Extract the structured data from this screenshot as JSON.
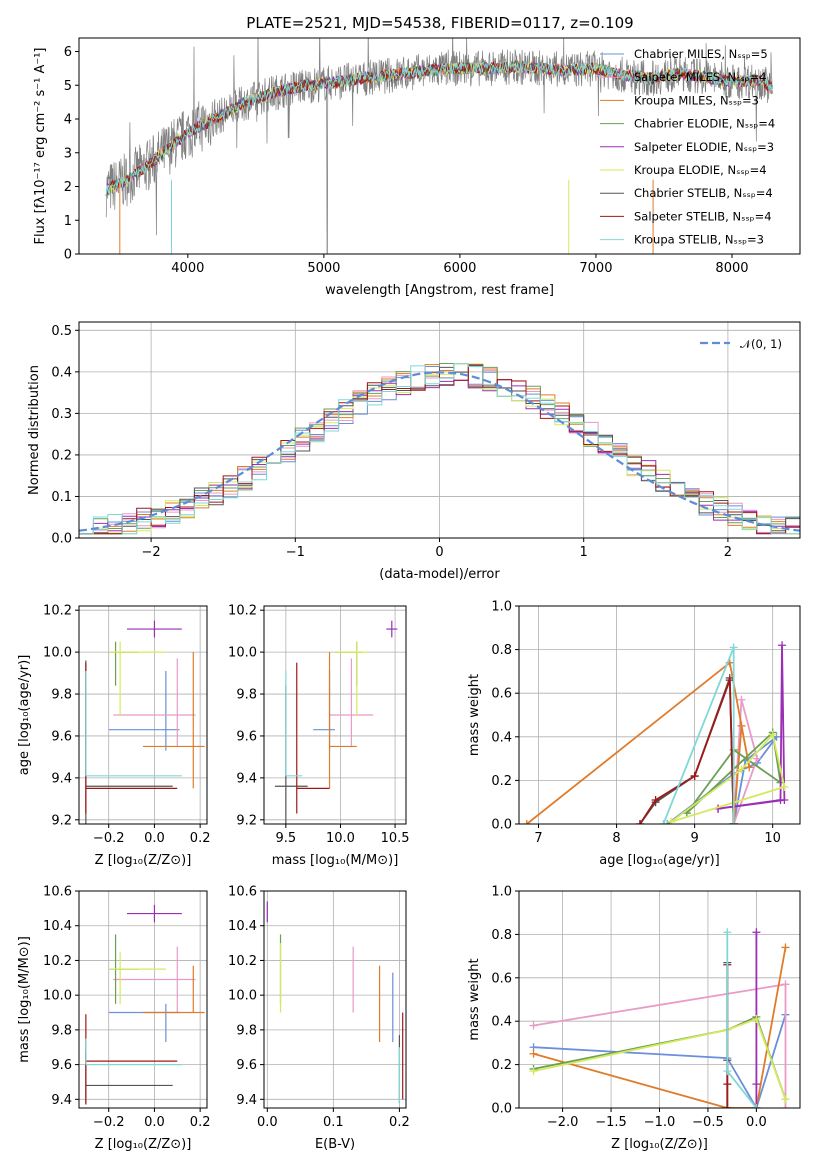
{
  "figure": {
    "title": "PLATE=2521, MJD=54538, FIBERID=0117, z=0.109",
    "colors": {
      "chabrier_miles": "#6b8fd8",
      "salpeter_miles": "#e99ac6",
      "kroupa_miles": "#e07b2a",
      "chabrier_elodie": "#6a9f55",
      "salpeter_elodie": "#9a2fb5",
      "kroupa_elodie": "#d4ea5c",
      "chabrier_stelib": "#555555",
      "salpeter_stelib": "#a01818",
      "kroupa_stelib": "#7fd8d8",
      "observed": "#808080",
      "normal": "#5b8dd9"
    }
  },
  "chart_data": [
    {
      "id": "spectrum",
      "type": "line",
      "xlabel": "wavelength [Angstrom, rest frame]",
      "ylabel": "Flux [fλ10⁻¹⁷ erg cm⁻² s⁻¹ A⁻¹]",
      "xlim": [
        3200,
        8500
      ],
      "ylim": [
        0,
        6.4
      ],
      "xticks": [
        4000,
        5000,
        6000,
        7000,
        8000
      ],
      "yticks": [
        0,
        1,
        2,
        3,
        4,
        5,
        6
      ],
      "legend_position": "upper-right",
      "legend": [
        "Chabrier MILES, Nₛₛₚ=5",
        "Salpeter MILES, Nₛₛₚ=4",
        "Kroupa MILES, Nₛₛₚ=3",
        "Chabrier ELODIE, Nₛₛₚ=4",
        "Salpeter ELODIE, Nₛₛₚ=3",
        "Kroupa ELODIE, Nₛₛₚ=4",
        "Chabrier STELIB, Nₛₛₚ=4",
        "Salpeter STELIB, Nₛₛₚ=4",
        "Kroupa STELIB, Nₛₛₚ=3"
      ],
      "continuum": {
        "x": [
          3400,
          3550,
          3700,
          3850,
          4000,
          4200,
          4400,
          4600,
          4800,
          5000,
          5200,
          5400,
          5600,
          5800,
          6000,
          6200,
          6400,
          6600,
          6800,
          7000,
          7200,
          7400,
          7600,
          7800,
          8000,
          8200,
          8300
        ],
        "y": [
          1.9,
          2.2,
          2.6,
          3.1,
          3.6,
          4.0,
          4.45,
          4.75,
          4.95,
          5.05,
          5.15,
          5.25,
          5.35,
          5.45,
          5.5,
          5.5,
          5.55,
          5.5,
          5.45,
          5.5,
          5.3,
          5.2,
          5.35,
          5.25,
          5.1,
          5.15,
          4.9
        ]
      }
    },
    {
      "id": "residuals",
      "type": "line",
      "xlabel": "(data-model)/error",
      "ylabel": "Normed distribution",
      "xlim": [
        -2.5,
        2.5
      ],
      "ylim": [
        0,
        0.52
      ],
      "xticks": [
        -2,
        -1,
        0,
        1,
        2
      ],
      "yticks": [
        0.0,
        0.1,
        0.2,
        0.3,
        0.4,
        0.5
      ],
      "legend": [
        "𝒩(0, 1)"
      ],
      "legend_position": "upper-right",
      "normal": {
        "mean": 0,
        "sigma": 1
      }
    },
    {
      "id": "age_vs_Z",
      "type": "scatter",
      "xlabel": "Z [log₁₀(Z/Z⊙)]",
      "ylabel": "age  [log₁₀(age/yr)]",
      "xlim": [
        -0.33,
        0.23
      ],
      "ylim": [
        9.18,
        10.22
      ],
      "xticks": [
        -0.2,
        0.0,
        0.2
      ],
      "yticks": [
        9.2,
        9.4,
        9.6,
        9.8,
        10.0,
        10.2
      ],
      "points": [
        {
          "model": "chabrier_miles",
          "x": 0.05,
          "xerr": [
            0.25,
            0.06
          ],
          "y": 9.63,
          "yerr": [
            0.1,
            0.28
          ]
        },
        {
          "model": "salpeter_miles",
          "x": 0.1,
          "xerr": [
            0.28,
            0.08
          ],
          "y": 9.7,
          "yerr": [
            0.15,
            0.27
          ]
        },
        {
          "model": "kroupa_miles",
          "x": 0.17,
          "xerr": [
            0.22,
            0.05
          ],
          "y": 9.55,
          "yerr": [
            0.2,
            0.45
          ]
        },
        {
          "model": "chabrier_elodie",
          "x": -0.17,
          "xerr": [
            0.03,
            0.1
          ],
          "y": 10.0,
          "yerr": [
            0.16,
            0.05
          ]
        },
        {
          "model": "salpeter_elodie",
          "x": 0.0,
          "xerr": [
            0.12,
            0.12
          ],
          "y": 10.11,
          "yerr": [
            0.04,
            0.04
          ]
        },
        {
          "model": "kroupa_elodie",
          "x": -0.15,
          "xerr": [
            0.05,
            0.2
          ],
          "y": 10.0,
          "yerr": [
            0.3,
            0.05
          ]
        },
        {
          "model": "chabrier_stelib",
          "x": -0.3,
          "xerr": [
            0.0,
            0.38
          ],
          "y": 9.36,
          "yerr": [
            0.2,
            0.6
          ]
        },
        {
          "model": "salpeter_stelib",
          "x": -0.3,
          "xerr": [
            0.0,
            0.4
          ],
          "y": 9.35,
          "yerr": [
            0.12,
            0.6
          ]
        },
        {
          "model": "kroupa_stelib",
          "x": -0.3,
          "xerr": [
            0.0,
            0.42
          ],
          "y": 9.41,
          "yerr": [
            0.0,
            0.5
          ]
        }
      ]
    },
    {
      "id": "age_vs_mass",
      "type": "scatter",
      "xlabel": "mass [log₁₀(M/M⊙)]",
      "ylabel": "",
      "xlim": [
        9.3,
        10.6
      ],
      "ylim": [
        9.18,
        10.22
      ],
      "xticks": [
        9.5,
        10.0,
        10.5
      ],
      "yticks": [
        9.2,
        9.4,
        9.6,
        9.8,
        10.0,
        10.2
      ],
      "points": [
        {
          "model": "chabrier_miles",
          "x": 9.9,
          "xerr": [
            0.15,
            0.05
          ],
          "y": 9.63,
          "yerr": [
            0.1,
            0.28
          ]
        },
        {
          "model": "salpeter_miles",
          "x": 10.1,
          "xerr": [
            0.2,
            0.2
          ],
          "y": 9.7,
          "yerr": [
            0.15,
            0.27
          ]
        },
        {
          "model": "kroupa_miles",
          "x": 9.9,
          "xerr": [
            0.0,
            0.25
          ],
          "y": 9.55,
          "yerr": [
            0.2,
            0.45
          ]
        },
        {
          "model": "chabrier_elodie",
          "x": 10.15,
          "xerr": [
            0.2,
            0.05
          ],
          "y": 10.0,
          "yerr": [
            0.16,
            0.05
          ]
        },
        {
          "model": "salpeter_elodie",
          "x": 10.47,
          "xerr": [
            0.05,
            0.05
          ],
          "y": 10.11,
          "yerr": [
            0.04,
            0.04
          ]
        },
        {
          "model": "kroupa_elodie",
          "x": 10.15,
          "xerr": [
            0.2,
            0.1
          ],
          "y": 10.0,
          "yerr": [
            0.3,
            0.05
          ]
        },
        {
          "model": "chabrier_stelib",
          "x": 9.5,
          "xerr": [
            0.1,
            0.2
          ],
          "y": 9.36,
          "yerr": [
            0.2,
            0.48
          ]
        },
        {
          "model": "salpeter_stelib",
          "x": 9.6,
          "xerr": [
            0.0,
            0.3
          ],
          "y": 9.35,
          "yerr": [
            0.12,
            0.6
          ]
        },
        {
          "model": "kroupa_stelib",
          "x": 9.5,
          "xerr": [
            0.0,
            0.15
          ],
          "y": 9.41,
          "yerr": [
            0.0,
            0.5
          ]
        }
      ]
    },
    {
      "id": "weight_vs_age",
      "type": "line",
      "xlabel": "age  [log₁₀(age/yr)]",
      "ylabel": "mass weight",
      "xlim": [
        6.75,
        10.35
      ],
      "ylim": [
        0.0,
        1.0
      ],
      "xticks": [
        7,
        8,
        9,
        10
      ],
      "yticks": [
        0.0,
        0.2,
        0.4,
        0.6,
        0.8,
        1.0
      ],
      "series": [
        {
          "model": "chabrier_miles",
          "x": [
            8.65,
            9.5,
            9.8,
            10.05,
            9.65,
            9.5
          ],
          "y": [
            0.0,
            0.23,
            0.28,
            0.4,
            0.29,
            0.0
          ]
        },
        {
          "model": "salpeter_miles",
          "x": [
            9.5,
            9.6,
            9.8,
            9.5
          ],
          "y": [
            0.0,
            0.57,
            0.3,
            0.0
          ]
        },
        {
          "model": "kroupa_miles",
          "x": [
            6.85,
            9.45,
            9.7,
            9.6,
            9.5
          ],
          "y": [
            0.0,
            0.74,
            0.26,
            0.45,
            0.0
          ]
        },
        {
          "model": "chabrier_elodie",
          "x": [
            8.9,
            10.0,
            10.1,
            9.5,
            8.9
          ],
          "y": [
            0.05,
            0.42,
            0.19,
            0.34,
            0.05
          ]
        },
        {
          "model": "salpeter_elodie",
          "x": [
            9.3,
            10.1,
            10.12,
            10.15,
            9.3
          ],
          "y": [
            0.07,
            0.11,
            0.82,
            0.11,
            0.07
          ]
        },
        {
          "model": "kroupa_elodie",
          "x": [
            8.7,
            9.6,
            10.0,
            10.15,
            8.7
          ],
          "y": [
            0.01,
            0.25,
            0.41,
            0.17,
            0.01
          ]
        },
        {
          "model": "chabrier_stelib",
          "x": [
            8.3,
            8.5,
            9.0,
            9.45,
            9.5
          ],
          "y": [
            0.0,
            0.1,
            0.22,
            0.67,
            0.0
          ]
        },
        {
          "model": "salpeter_stelib",
          "x": [
            8.3,
            8.5,
            9.0,
            9.45,
            9.5
          ],
          "y": [
            0.0,
            0.11,
            0.22,
            0.66,
            0.0
          ]
        },
        {
          "model": "kroupa_stelib",
          "x": [
            8.6,
            9.5,
            9.5
          ],
          "y": [
            0.0,
            0.81,
            0.0
          ]
        }
      ]
    },
    {
      "id": "mass_vs_Z",
      "type": "scatter",
      "xlabel": "Z [log₁₀(Z/Z⊙)]",
      "ylabel": "mass [log₁₀(M/M⊙)]",
      "xlim": [
        -0.33,
        0.23
      ],
      "ylim": [
        9.35,
        10.6
      ],
      "xticks": [
        -0.2,
        0.0,
        0.2
      ],
      "yticks": [
        9.4,
        9.6,
        9.8,
        10.0,
        10.2,
        10.4,
        10.6
      ],
      "points": [
        {
          "model": "chabrier_miles",
          "x": 0.05,
          "xerr": [
            0.25,
            0.06
          ],
          "y": 9.9,
          "yerr": [
            0.17,
            0.05
          ]
        },
        {
          "model": "salpeter_miles",
          "x": 0.1,
          "xerr": [
            0.28,
            0.08
          ],
          "y": 10.09,
          "yerr": [
            0.19,
            0.19
          ]
        },
        {
          "model": "kroupa_miles",
          "x": 0.17,
          "xerr": [
            0.22,
            0.05
          ],
          "y": 9.9,
          "yerr": [
            0.0,
            0.27
          ]
        },
        {
          "model": "chabrier_elodie",
          "x": -0.17,
          "xerr": [
            0.03,
            0.1
          ],
          "y": 10.15,
          "yerr": [
            0.2,
            0.2
          ]
        },
        {
          "model": "salpeter_elodie",
          "x": 0.0,
          "xerr": [
            0.12,
            0.12
          ],
          "y": 10.47,
          "yerr": [
            0.05,
            0.05
          ]
        },
        {
          "model": "kroupa_elodie",
          "x": -0.15,
          "xerr": [
            0.05,
            0.2
          ],
          "y": 10.15,
          "yerr": [
            0.2,
            0.1
          ]
        },
        {
          "model": "chabrier_stelib",
          "x": -0.3,
          "xerr": [
            0.0,
            0.38
          ],
          "y": 9.48,
          "yerr": [
            0.1,
            0.2
          ]
        },
        {
          "model": "salpeter_stelib",
          "x": -0.3,
          "xerr": [
            0.0,
            0.4
          ],
          "y": 9.62,
          "yerr": [
            0.25,
            0.27
          ]
        },
        {
          "model": "kroupa_stelib",
          "x": -0.3,
          "xerr": [
            0.0,
            0.42
          ],
          "y": 9.6,
          "yerr": [
            0.0,
            0.15
          ]
        }
      ]
    },
    {
      "id": "mass_vs_EBV",
      "type": "scatter",
      "xlabel": "E(B-V)",
      "ylabel": "",
      "xlim": [
        -0.005,
        0.21
      ],
      "ylim": [
        9.35,
        10.6
      ],
      "xticks": [
        0.0,
        0.1,
        0.2
      ],
      "yticks": [
        9.4,
        9.6,
        9.8,
        10.0,
        10.2,
        10.4,
        10.6
      ],
      "points": [
        {
          "model": "chabrier_miles",
          "x": 0.19,
          "y": 9.9,
          "yerr": [
            0.17,
            0.23
          ]
        },
        {
          "model": "salpeter_miles",
          "x": 0.13,
          "y": 10.09,
          "yerr": [
            0.19,
            0.19
          ]
        },
        {
          "model": "kroupa_miles",
          "x": 0.17,
          "y": 9.9,
          "yerr": [
            0.17,
            0.27
          ]
        },
        {
          "model": "chabrier_elodie",
          "x": 0.02,
          "y": 10.15,
          "yerr": [
            0.2,
            0.2
          ]
        },
        {
          "model": "salpeter_elodie",
          "x": 0.0,
          "y": 10.48,
          "yerr": [
            0.06,
            0.06
          ]
        },
        {
          "model": "kroupa_elodie",
          "x": 0.02,
          "y": 10.1,
          "yerr": [
            0.2,
            0.2
          ]
        },
        {
          "model": "chabrier_stelib",
          "x": 0.2,
          "y": 9.6,
          "yerr": [
            0.22,
            0.17
          ]
        },
        {
          "model": "salpeter_stelib",
          "x": 0.205,
          "y": 9.7,
          "yerr": [
            0.3,
            0.2
          ]
        },
        {
          "model": "kroupa_stelib",
          "x": 0.2,
          "y": 9.5,
          "yerr": [
            0.12,
            0.2
          ]
        }
      ]
    },
    {
      "id": "weight_vs_Z",
      "type": "line",
      "xlabel": "Z [log₁₀(Z/Z⊙)]",
      "ylabel": "mass weight",
      "xlim": [
        -2.45,
        0.45
      ],
      "ylim": [
        0.0,
        1.0
      ],
      "xticks": [
        -2.0,
        -1.5,
        -1.0,
        -0.5,
        0.0
      ],
      "yticks": [
        0.0,
        0.2,
        0.4,
        0.6,
        0.8,
        1.0
      ],
      "series": [
        {
          "model": "chabrier_miles",
          "x": [
            -2.3,
            -0.3,
            0.0,
            0.3
          ],
          "y": [
            0.28,
            0.23,
            0.0,
            0.43
          ]
        },
        {
          "model": "salpeter_miles",
          "x": [
            -2.3,
            0.3,
            0.3
          ],
          "y": [
            0.38,
            0.57,
            0.0
          ]
        },
        {
          "model": "kroupa_miles",
          "x": [
            -2.3,
            -0.3,
            0.0,
            0.3
          ],
          "y": [
            0.25,
            0.0,
            0.0,
            0.74
          ]
        },
        {
          "model": "chabrier_elodie",
          "x": [
            -2.3,
            -0.3,
            0.0,
            0.3
          ],
          "y": [
            0.18,
            0.36,
            0.42,
            0.04
          ]
        },
        {
          "model": "salpeter_elodie",
          "x": [
            0.0,
            0.0,
            0.0
          ],
          "y": [
            0.0,
            0.81,
            0.11
          ]
        },
        {
          "model": "kroupa_elodie",
          "x": [
            -2.3,
            -0.3,
            0.0,
            0.3
          ],
          "y": [
            0.17,
            0.36,
            0.41,
            0.04
          ]
        },
        {
          "model": "chabrier_stelib",
          "x": [
            -0.3,
            -0.3,
            -0.3
          ],
          "y": [
            0.0,
            0.67,
            0.22
          ]
        },
        {
          "model": "salpeter_stelib",
          "x": [
            -0.3,
            -0.3,
            -0.3
          ],
          "y": [
            0.0,
            0.66,
            0.11
          ]
        },
        {
          "model": "kroupa_stelib",
          "x": [
            -0.3,
            -0.3,
            0.0
          ],
          "y": [
            0.81,
            0.17,
            0.0
          ]
        }
      ]
    }
  ]
}
